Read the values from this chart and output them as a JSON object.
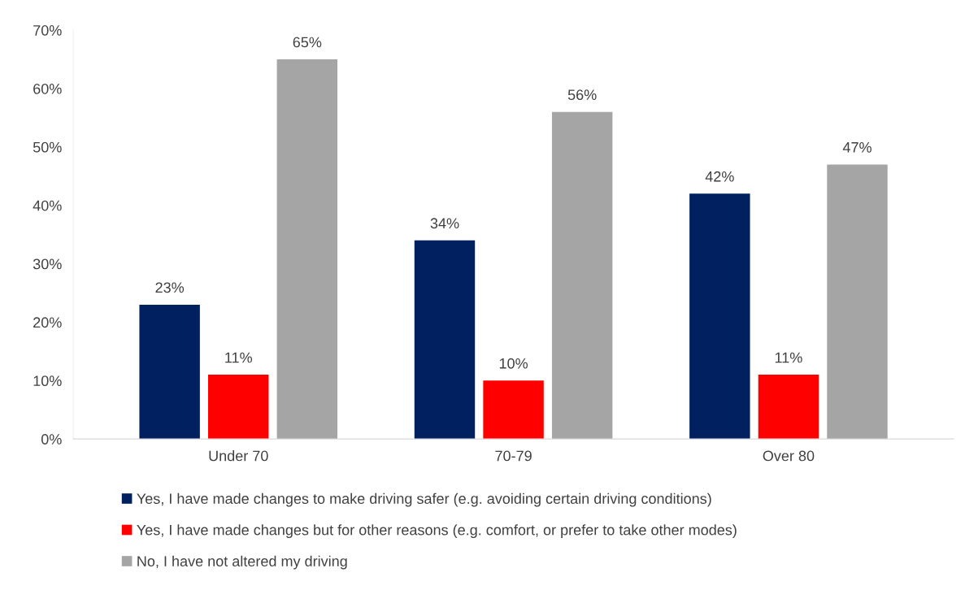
{
  "chart_data": {
    "type": "bar",
    "categories": [
      "Under 70",
      "70-79",
      "Over 80"
    ],
    "series": [
      {
        "name": "Yes, I have made changes to make driving safer (e.g. avoiding certain driving conditions)",
        "color": "#002060",
        "values": [
          23,
          34,
          42
        ],
        "value_labels": [
          "23%",
          "34%",
          "42%"
        ]
      },
      {
        "name": "Yes, I have made changes but for other reasons (e.g. comfort, or prefer to take other modes)",
        "color": "#ff0000",
        "values": [
          11,
          10,
          11
        ],
        "value_labels": [
          "11%",
          "10%",
          "11%"
        ]
      },
      {
        "name": "No, I have not altered my driving",
        "color": "#a5a5a5",
        "values": [
          65,
          56,
          47
        ],
        "value_labels": [
          "65%",
          "56%",
          "47%"
        ]
      }
    ],
    "ylim": [
      0,
      70
    ],
    "yticks": [
      {
        "value": 0,
        "label": "0%"
      },
      {
        "value": 10,
        "label": "10%"
      },
      {
        "value": 20,
        "label": "20%"
      },
      {
        "value": 30,
        "label": "30%"
      },
      {
        "value": 40,
        "label": "40%"
      },
      {
        "value": 50,
        "label": "50%"
      },
      {
        "value": 60,
        "label": "60%"
      },
      {
        "value": 70,
        "label": "70%"
      }
    ],
    "grid": false,
    "legend": "bottom"
  }
}
